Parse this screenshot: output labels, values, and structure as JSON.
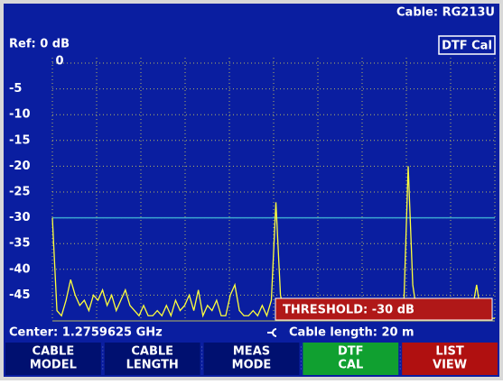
{
  "header": {
    "cable": "Cable: RG213U",
    "ref": "Ref: 0 dB",
    "mode": "DTF Cal"
  },
  "chart_data": {
    "type": "line",
    "ylim": [
      -50,
      0
    ],
    "yticks": [
      0,
      -5,
      -10,
      -15,
      -20,
      -25,
      -30,
      -35,
      -40,
      -45
    ],
    "grid": true,
    "color": "#ffff3c",
    "values": [
      -30,
      -48,
      -49,
      -46,
      -42,
      -45,
      -47,
      -46,
      -48,
      -45,
      -46,
      -44,
      -47,
      -45,
      -48,
      -46,
      -44,
      -47,
      -48,
      -49,
      -47,
      -49,
      -49,
      -48,
      -49,
      -47,
      -49,
      -46,
      -48,
      -47,
      -45,
      -48,
      -44,
      -49,
      -47,
      -48,
      -46,
      -49,
      -49,
      -45,
      -43,
      -48,
      -49,
      -49,
      -48,
      -49,
      -47,
      -49,
      -46,
      -27,
      -45,
      -49,
      -49.5,
      -49.5,
      -49.5,
      -49.5,
      -49.5,
      -49.5,
      -49.5,
      -49.5,
      -49.5,
      -49.5,
      -49.5,
      -49.5,
      -49.5,
      -49.5,
      -49.5,
      -49.5,
      -49.5,
      -49.5,
      -49.5,
      -49.5,
      -49.5,
      -49.5,
      -49.5,
      -49.5,
      -49,
      -48,
      -20,
      -43,
      -49,
      -49.5,
      -49.5,
      -49.5,
      -49.5,
      -49.5,
      -49.5,
      -49.5,
      -49.5,
      -49.5,
      -49.5,
      -49.5,
      -48,
      -43,
      -49,
      -49.5,
      -49.5,
      -49.5
    ],
    "threshold": {
      "value": -30,
      "label": "THRESHOLD: -30 dB",
      "color": "#3aa6d0"
    }
  },
  "footer": {
    "center": "Center: 1.2759625 GHz",
    "length": "Cable length: 20 m"
  },
  "softkeys": [
    {
      "lines": [
        "CABLE",
        "MODEL"
      ],
      "color": "#001070"
    },
    {
      "lines": [
        "CABLE",
        "LENGTH"
      ],
      "color": "#001070"
    },
    {
      "lines": [
        "MEAS",
        "MODE"
      ],
      "color": "#001070"
    },
    {
      "lines": [
        "DTF",
        "CAL"
      ],
      "color": "#10a030"
    },
    {
      "lines": [
        "LIST",
        "VIEW"
      ],
      "color": "#b01010"
    }
  ]
}
